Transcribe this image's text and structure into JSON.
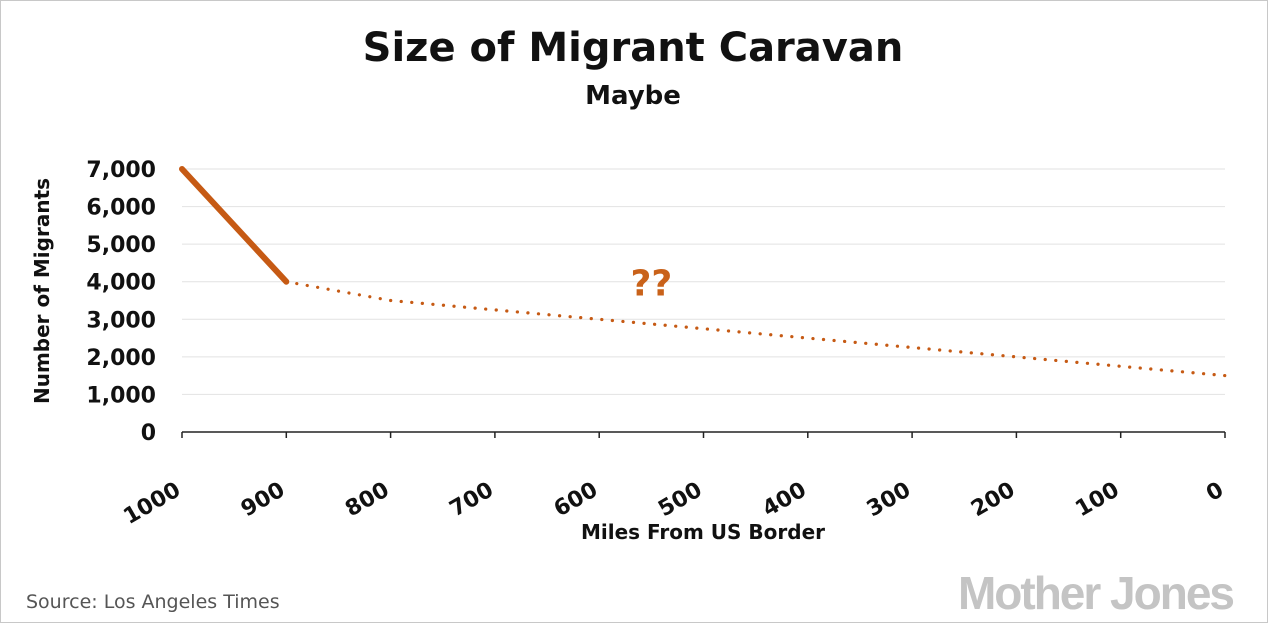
{
  "chart_data": {
    "type": "line",
    "title": "Size of Migrant Caravan",
    "subtitle": "Maybe",
    "xlabel": "Miles From US Border",
    "ylabel": "Number of Migrants",
    "xlim": [
      1000,
      0
    ],
    "ylim": [
      0,
      7000
    ],
    "x_ticks": [
      "1000",
      "900",
      "800",
      "700",
      "600",
      "500",
      "400",
      "300",
      "200",
      "100",
      "0"
    ],
    "y_ticks": [
      "0",
      "1,000",
      "2,000",
      "3,000",
      "4,000",
      "5,000",
      "6,000",
      "7,000"
    ],
    "grid": true,
    "series": [
      {
        "style": "solid",
        "color": "#c65a14",
        "x": [
          1000,
          900
        ],
        "y": [
          7000,
          4000
        ]
      },
      {
        "style": "dotted",
        "color": "#c65a14",
        "x": [
          900,
          800,
          700,
          600,
          500,
          400,
          300,
          200,
          100,
          0
        ],
        "y": [
          4000,
          3500,
          3250,
          3000,
          2750,
          2500,
          2250,
          2000,
          1750,
          1500
        ]
      }
    ],
    "annotations": [
      {
        "text": "??",
        "x": 550,
        "y": 4000
      }
    ]
  },
  "footer": {
    "source": "Source: Los Angeles Times",
    "logo": "Mother Jones"
  }
}
